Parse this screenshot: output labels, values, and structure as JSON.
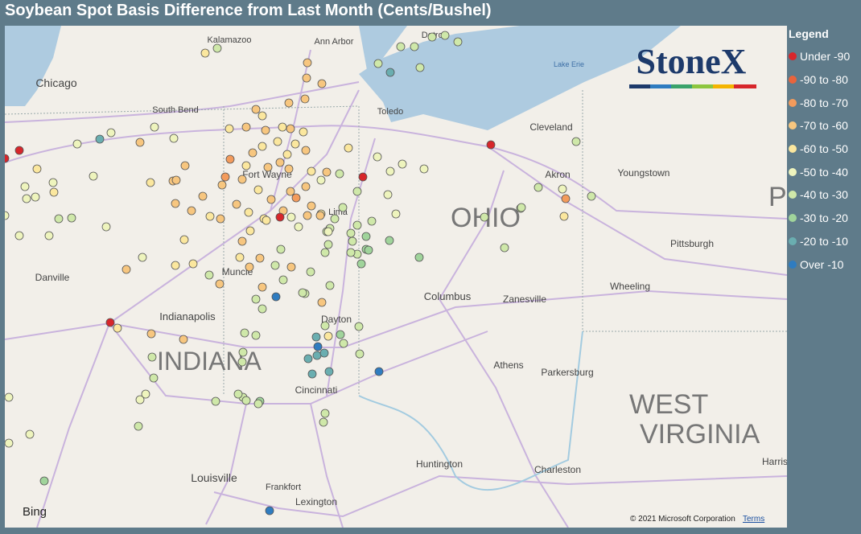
{
  "header": {
    "title": "Soybean Spot Basis Difference from Last Month (Cents/Bushel)"
  },
  "legend": {
    "title": "Legend",
    "items": [
      {
        "label": "Under -90",
        "color": "#d7262b"
      },
      {
        "label": "-90 to -80",
        "color": "#e9643c"
      },
      {
        "label": "-80 to -70",
        "color": "#f39b5c"
      },
      {
        "label": "-70 to -60",
        "color": "#f7c67f"
      },
      {
        "label": "-60 to -50",
        "color": "#fbe79e"
      },
      {
        "label": "-50 to -40",
        "color": "#eef4bd"
      },
      {
        "label": "-40 to -30",
        "color": "#cfe8a9"
      },
      {
        "label": "-30 to -20",
        "color": "#a0d49b"
      },
      {
        "label": "-20 to -10",
        "color": "#6aaeb0"
      },
      {
        "label": "Over -10",
        "color": "#2f7cc0"
      }
    ]
  },
  "map": {
    "logo": "StoneX",
    "labels": [
      "Kalamazoo",
      "Ann Arbor",
      "Detroit",
      "Chicago",
      "South Bend",
      "Toledo",
      "Cleveland",
      "Fort Wayne",
      "Youngstown",
      "Akron",
      "Lima",
      "OHIO",
      "Pittsburgh",
      "Muncie",
      "Danville",
      "Wheeling",
      "Columbus",
      "Zanesville",
      "Indianapolis",
      "Dayton",
      "INDIANA",
      "Athens",
      "Parkersburg",
      "Cincinnati",
      "WEST",
      "VIRGINIA",
      "Huntington",
      "Charleston",
      "Harris",
      "Louisville",
      "Frankfort",
      "Lexington",
      "Lake Erie",
      "PEN"
    ],
    "provider": "Bing",
    "copyright": "© 2021 Microsoft Corporation",
    "terms": "Terms"
  }
}
